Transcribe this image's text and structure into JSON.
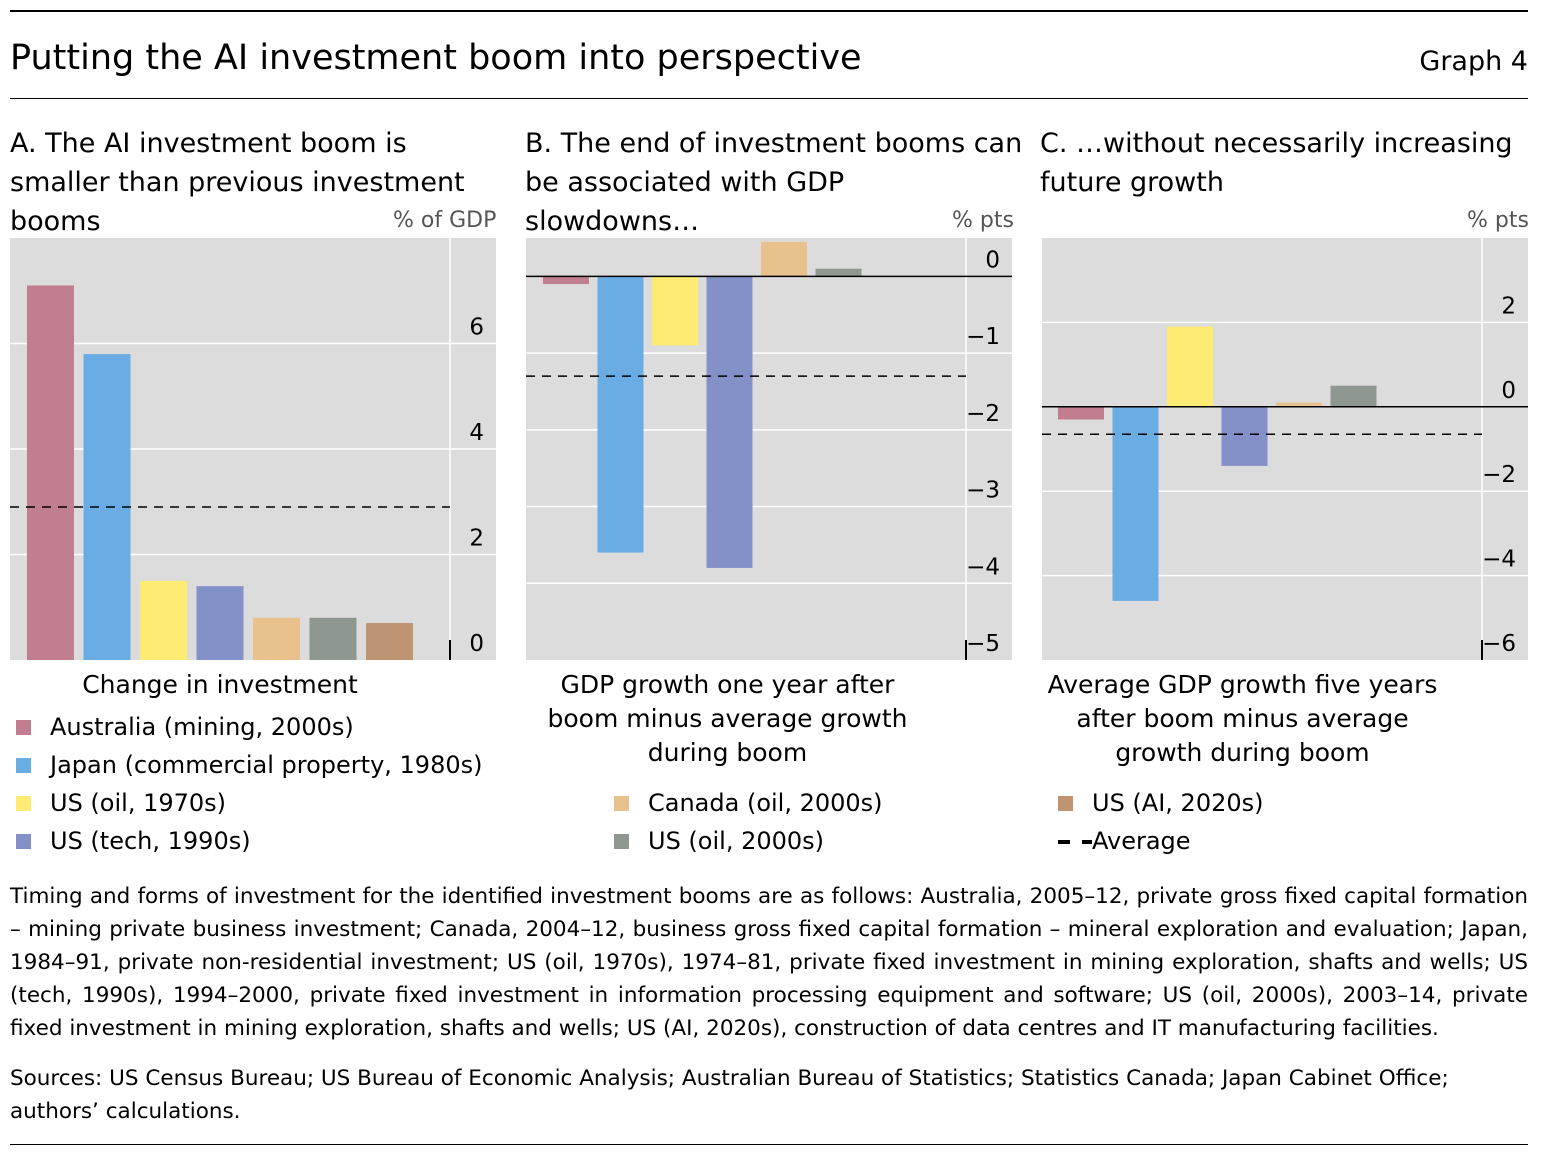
{
  "title": "Putting the AI investment boom into perspective",
  "graph_label": "Graph 4",
  "legend": [
    {
      "label": "Australia (mining, 2000s)",
      "color": "#c17e8e"
    },
    {
      "label": "Japan (commercial property, 1980s)",
      "color": "#6aade4"
    },
    {
      "label": "US (oil, 1970s)",
      "color": "#fdeb73"
    },
    {
      "label": "US (tech, 1990s)",
      "color": "#8490c8"
    },
    {
      "label": "Canada (oil, 2000s)",
      "color": "#e8c18d"
    },
    {
      "label": "US (oil, 2000s)",
      "color": "#8e9890"
    },
    {
      "label": "US (AI, 2020s)",
      "color": "#be9472"
    },
    {
      "label": "Average",
      "color": "#000000",
      "style": "dashed"
    }
  ],
  "chart_data": [
    {
      "type": "bar",
      "panel": "A",
      "title": "A. The AI investment boom is smaller than previous investment booms",
      "unit": "% of GDP",
      "xlabel": "Change in investment",
      "ylim": [
        0,
        8
      ],
      "yticks": [
        0,
        2,
        4,
        6
      ],
      "categories": [
        "Australia (mining, 2000s)",
        "Japan (commercial property, 1980s)",
        "US (oil, 1970s)",
        "US (tech, 1990s)",
        "Canada (oil, 2000s)",
        "US (oil, 2000s)",
        "US (AI, 2020s)"
      ],
      "values": [
        7.1,
        5.8,
        1.5,
        1.4,
        0.8,
        0.8,
        0.7
      ],
      "average": 2.9
    },
    {
      "type": "bar",
      "panel": "B",
      "title": "B. The end of investment booms can be associated with GDP slowdowns…",
      "unit": "% pts",
      "xlabel": "GDP growth one year after boom minus average growth during boom",
      "ylim": [
        -5,
        0.5
      ],
      "yticks": [
        0,
        -1,
        -2,
        -3,
        -4,
        -5
      ],
      "categories": [
        "Australia (mining, 2000s)",
        "Japan (commercial property, 1980s)",
        "US (oil, 1970s)",
        "US (tech, 1990s)",
        "Canada (oil, 2000s)",
        "US (oil, 2000s)"
      ],
      "values": [
        -0.1,
        -3.6,
        -0.9,
        -3.8,
        0.45,
        0.1
      ],
      "average": -1.3
    },
    {
      "type": "bar",
      "panel": "C",
      "title": "C. …without necessarily increasing future growth",
      "unit": "% pts",
      "xlabel": "Average GDP growth five years after boom minus average growth during boom",
      "ylim": [
        -6,
        4
      ],
      "yticks": [
        2,
        0,
        -2,
        -4,
        -6
      ],
      "categories": [
        "Australia (mining, 2000s)",
        "Japan (commercial property, 1980s)",
        "US (oil, 1970s)",
        "US (tech, 1990s)",
        "Canada (oil, 2000s)",
        "US (oil, 2000s)"
      ],
      "values": [
        -0.3,
        -4.6,
        1.9,
        -1.4,
        0.1,
        0.5
      ],
      "average": -0.65
    }
  ],
  "footnote": "Timing and forms of investment for the identified investment booms are as follows: Australia, 2005–12, private gross fixed capital formation – mining private business investment; Canada, 2004–12, business gross fixed capital formation – mineral exploration and evaluation; Japan, 1984–91, private non-residential investment; US (oil, 1970s), 1974–81, private fixed investment in mining exploration, shafts and wells; US (tech, 1990s), 1994–2000, private fixed investment in information processing equipment and software; US (oil, 2000s), 2003–14, private fixed investment in mining exploration, shafts and wells; US (AI, 2020s), construction of data centres and IT manufacturing facilities.",
  "sources": "Sources: US Census Bureau; US Bureau of Economic Analysis; Australian Bureau of Statistics; Statistics Canada; Japan Cabinet Office; authors’ calculations."
}
